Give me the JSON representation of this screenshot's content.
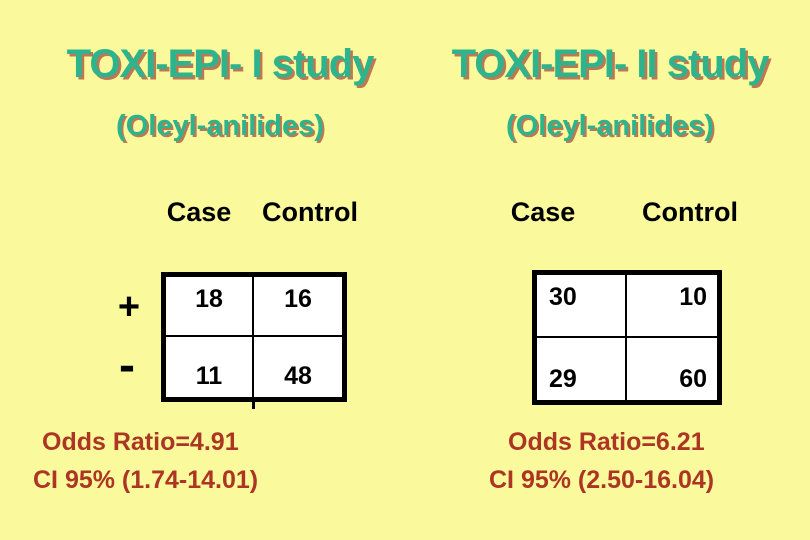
{
  "slide": {
    "background_color": "#FAFA9D",
    "title_color": "#2DB48C",
    "title_shadow_color": "#B45F46",
    "stat_text_color": "#AC3523",
    "study_1": {
      "title": "TOXI-EPI- I study",
      "subtitle": "(Oleyl-anilides)",
      "col_headers": [
        "Case",
        "Control"
      ],
      "row_labels": [
        "+",
        "-"
      ],
      "table": {
        "rows": [
          [
            "18",
            "16"
          ],
          [
            "11",
            "48"
          ]
        ]
      },
      "odds_ratio": "Odds Ratio=4.91",
      "confidence_interval": "CI 95% (1.74-14.01)"
    },
    "study_2": {
      "title": "TOXI-EPI- II study",
      "subtitle": "(Oleyl-anilides)",
      "col_headers": [
        "Case",
        "Control"
      ],
      "table": {
        "rows": [
          [
            "30",
            "10"
          ],
          [
            "29",
            "60"
          ]
        ]
      },
      "odds_ratio": "Odds Ratio=6.21",
      "confidence_interval": "CI 95% (2.50-16.04)"
    }
  }
}
